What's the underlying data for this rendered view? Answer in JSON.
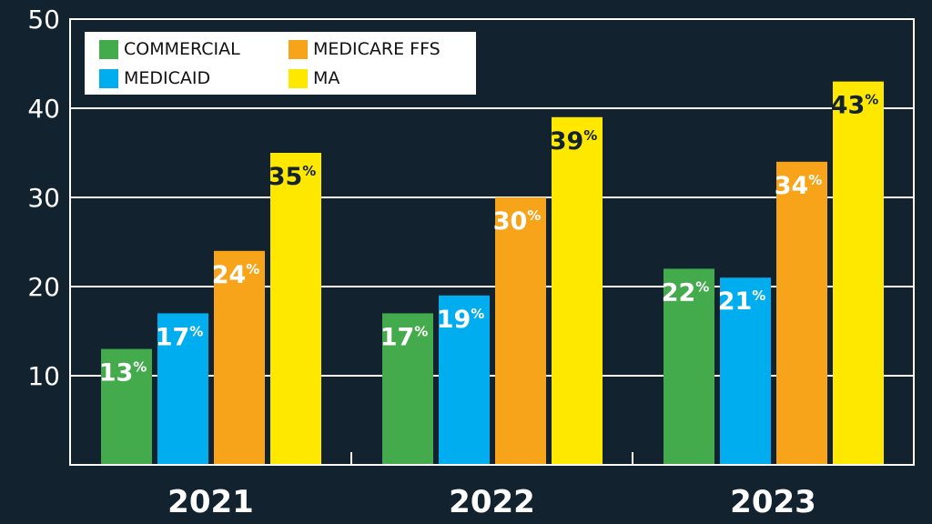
{
  "chart_data": {
    "type": "bar",
    "title": "",
    "xlabel": "",
    "ylabel": "",
    "categories": [
      "2021",
      "2022",
      "2023"
    ],
    "series": [
      {
        "name": "COMMERCIAL",
        "color": "#43ab4b",
        "label_color": "#ffffff",
        "values": [
          13,
          17,
          22
        ]
      },
      {
        "name": "MEDICAID",
        "color": "#00aeef",
        "label_color": "#ffffff",
        "values": [
          17,
          19,
          21
        ]
      },
      {
        "name": "MEDICARE FFS",
        "color": "#f8a41b",
        "label_color": "#ffffff",
        "values": [
          24,
          30,
          34
        ]
      },
      {
        "name": "MA",
        "color": "#ffe800",
        "label_color": "#13222f",
        "values": [
          35,
          39,
          43
        ]
      }
    ],
    "value_suffix": "%",
    "ylim": [
      0,
      50
    ],
    "yticks": [
      10,
      20,
      30,
      40,
      50
    ],
    "grid": true,
    "legend_position": "top-left",
    "legend_order": [
      [
        "COMMERCIAL",
        "MEDICARE FFS"
      ],
      [
        "MEDICAID",
        "MA"
      ]
    ]
  },
  "theme": {
    "background": "#13222f",
    "axis_color": "#ffffff",
    "grid_color": "#ffffff"
  }
}
